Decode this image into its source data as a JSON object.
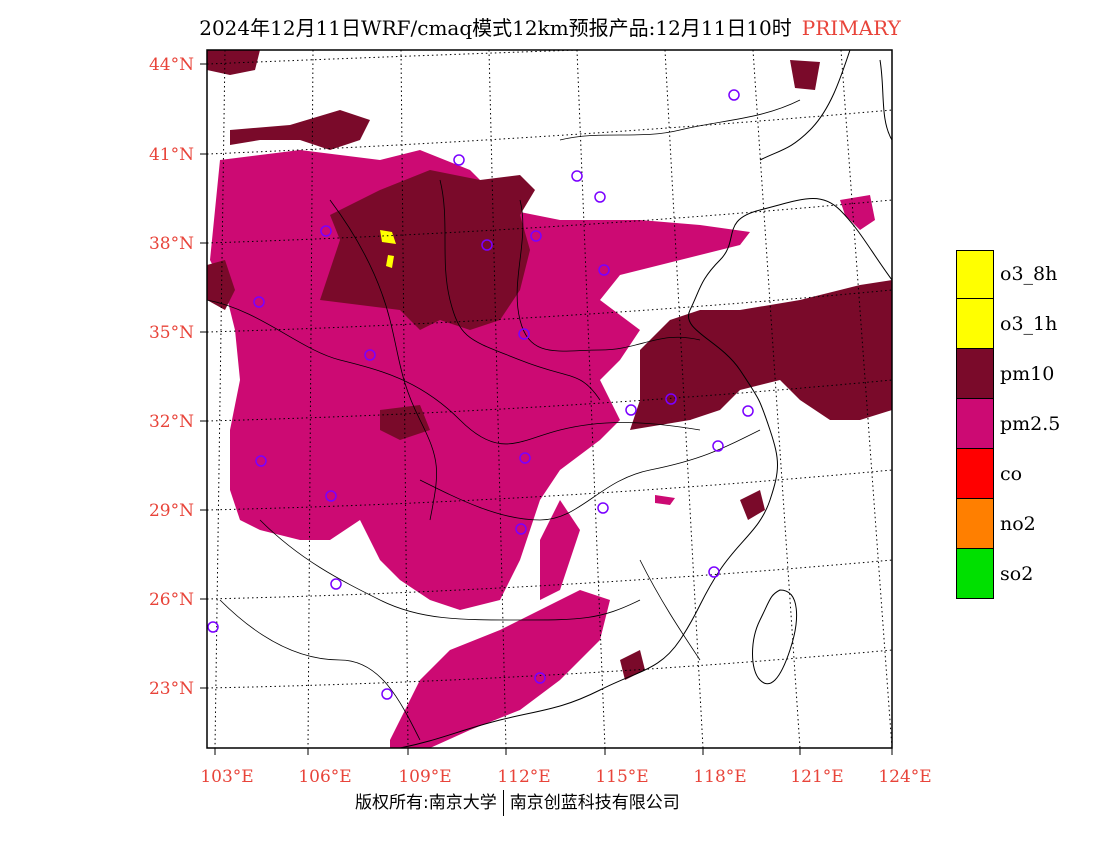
{
  "title": {
    "main": "2024年12月11日WRF/cmaq模式12km预报产品:12月11日10时",
    "tag": "PRIMARY"
  },
  "map": {
    "lat_labels": [
      "44°N",
      "41°N",
      "38°N",
      "35°N",
      "32°N",
      "29°N",
      "26°N",
      "23°N"
    ],
    "lon_labels": [
      "103°E",
      "106°E",
      "109°E",
      "112°E",
      "115°E",
      "118°E",
      "121°E",
      "124°E"
    ],
    "pollutant_colors": {
      "o3_8h": "#ffff00",
      "o3_1h": "#ffff00",
      "pm10": "#7a0a2a",
      "pm2.5": "#cc0a73",
      "co": "#ff0000",
      "no2": "#ff7f00",
      "so2": "#00e000"
    },
    "station_marker": "circle",
    "station_color": "#7a00ff"
  },
  "legend": [
    {
      "label": "o3_8h",
      "color": "#ffff00"
    },
    {
      "label": "o3_1h",
      "color": "#ffff00"
    },
    {
      "label": "pm10",
      "color": "#7a0a2a"
    },
    {
      "label": "pm2.5",
      "color": "#cc0a73"
    },
    {
      "label": "co",
      "color": "#ff0000"
    },
    {
      "label": "no2",
      "color": "#ff7f00"
    },
    {
      "label": "so2",
      "color": "#00e000"
    }
  ],
  "footer": {
    "left": "版权所有:南京大学",
    "right": "南京创蓝科技有限公司"
  }
}
